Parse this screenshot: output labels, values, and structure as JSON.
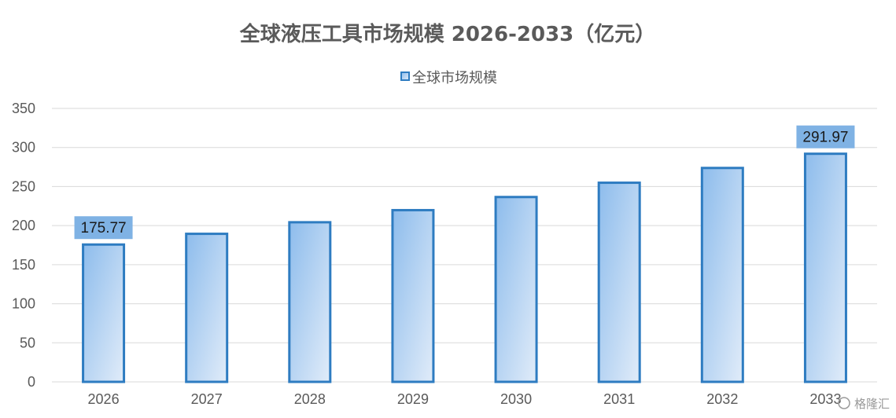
{
  "chart_data": {
    "type": "bar",
    "title": "全球液压工具市场规模 2026-2033（亿元）",
    "legend": {
      "position": "top",
      "entries": [
        "全球市场规模"
      ]
    },
    "categories": [
      "2026",
      "2027",
      "2028",
      "2029",
      "2030",
      "2031",
      "2032",
      "2033"
    ],
    "series": [
      {
        "name": "全球市场规模",
        "values": [
          175.77,
          189.5,
          204.3,
          219.8,
          236.6,
          254.9,
          273.8,
          291.97
        ]
      }
    ],
    "data_labels": [
      {
        "category": "2026",
        "text": "175.77"
      },
      {
        "category": "2033",
        "text": "291.97"
      }
    ],
    "yticks": [
      0,
      50,
      100,
      150,
      200,
      250,
      300,
      350
    ],
    "ylim": [
      0,
      350
    ],
    "grid": true,
    "colors": {
      "bar_fill_top": "#8dbcec",
      "bar_fill_bottom": "#dce9f8",
      "bar_stroke": "#2e7cc1",
      "label_bg": "#7fb2e4",
      "grid": "#d9d9d9"
    }
  },
  "watermark": {
    "text": "格隆汇"
  }
}
